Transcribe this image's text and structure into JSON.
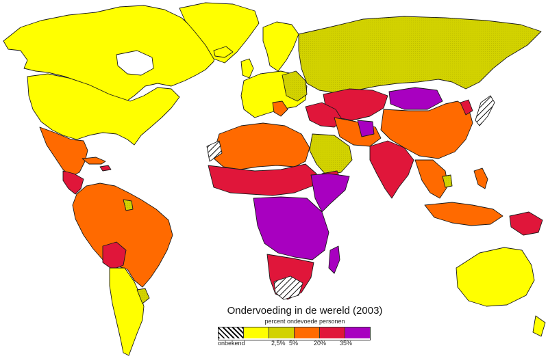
{
  "title": "Ondervoeding in de wereld (2003)",
  "subtitle": "percent ondevoede personen",
  "legend": {
    "items": [
      {
        "key": "unknown",
        "color": "hatch"
      },
      {
        "key": "lt2_5",
        "color": "#ffff00"
      },
      {
        "key": "2_5to5",
        "color": "#d2d200"
      },
      {
        "key": "5to20",
        "color": "#ff6a00"
      },
      {
        "key": "20to35",
        "color": "#e0163a"
      },
      {
        "key": "gt35",
        "color": "#a800c0"
      }
    ],
    "labels": {
      "unknown": "onbekend",
      "t1": "2,5%",
      "t2": "5%",
      "t3": "20%",
      "t4": "35%"
    }
  },
  "colors": {
    "lt2_5": "#ffff00",
    "2_5to5": "#d2d200",
    "5to20": "#ff6a00",
    "20to35": "#e0163a",
    "gt35": "#a800c0"
  }
}
